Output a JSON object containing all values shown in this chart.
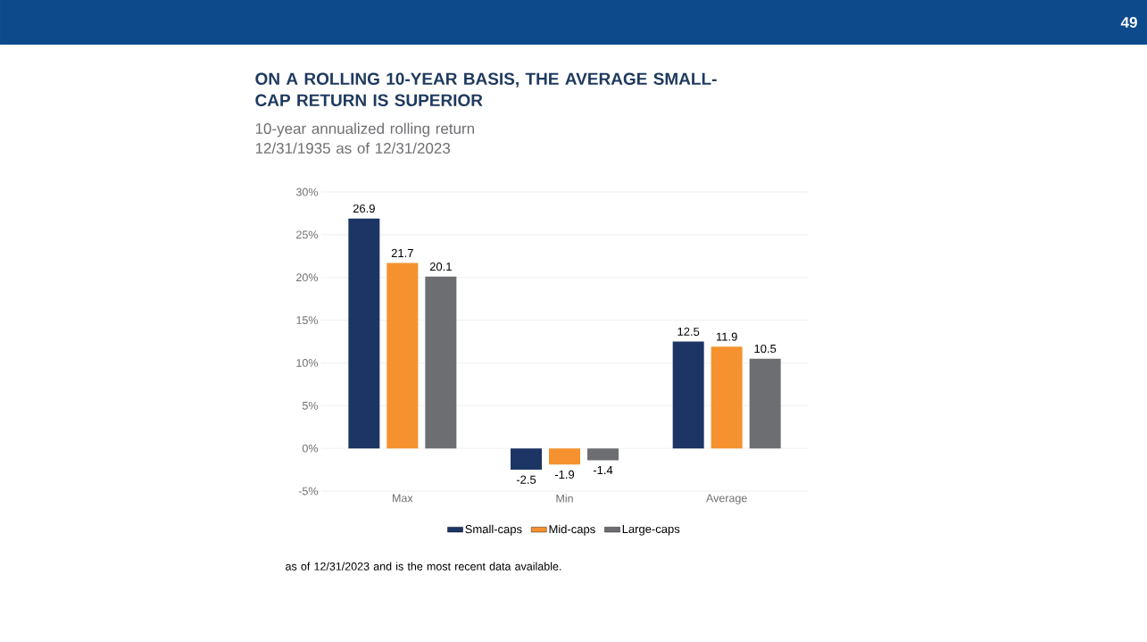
{
  "chart_data": {
    "type": "bar",
    "title": "ON A ROLLING 10-YEAR BASIS, THE AVERAGE SMALL-CAP RETURN IS SUPERIOR",
    "subtitle": "10-year annualized rolling return 12/31/1935 as of 12/31/2023",
    "categories": [
      "Max",
      "Min",
      "Average"
    ],
    "series": [
      {
        "name": "Small-caps",
        "color": "#1c3564",
        "values": [
          26.9,
          -2.5,
          12.5
        ]
      },
      {
        "name": "Mid-caps",
        "color": "#f5922f",
        "values": [
          21.7,
          -1.9,
          11.9
        ]
      },
      {
        "name": "Large-caps",
        "color": "#6d6e71",
        "values": [
          20.1,
          -1.4,
          10.5
        ]
      }
    ],
    "ylim": [
      -5,
      30
    ],
    "yticks": [
      {
        "value": -5,
        "label": "-5%"
      },
      {
        "value": 0,
        "label": "0%"
      },
      {
        "value": 5,
        "label": "5%"
      },
      {
        "value": 10,
        "label": "10%"
      },
      {
        "value": 15,
        "label": "15%"
      },
      {
        "value": 20,
        "label": "20%"
      },
      {
        "value": 25,
        "label": "25%"
      },
      {
        "value": 30,
        "label": "30%"
      }
    ],
    "grid": "y",
    "legend": "bottom",
    "data_labels": true,
    "annotations": [
      "as of 12/31/2023 and is the most recent data available.",
      "49"
    ]
  }
}
